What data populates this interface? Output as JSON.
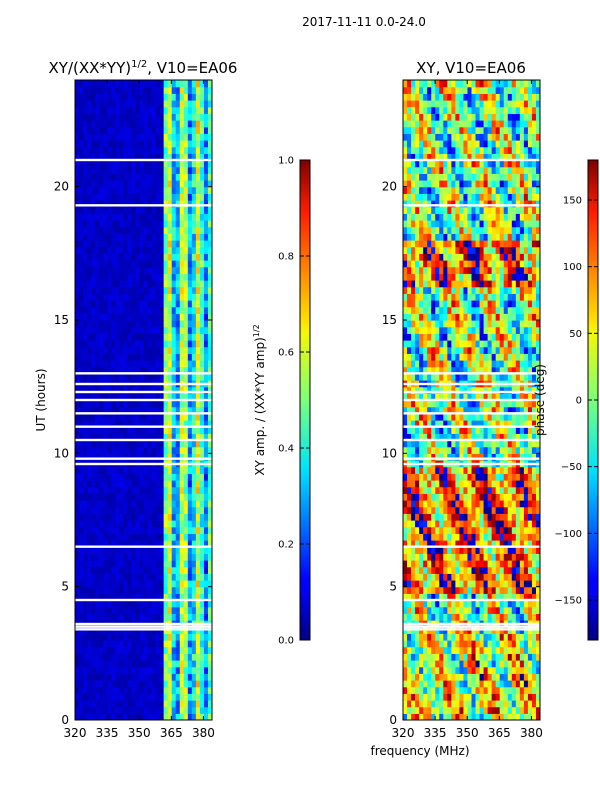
{
  "suptitle": "2017-11-11 0.0-24.0",
  "shared_xlabel": "frequency (MHz)",
  "colormap": "jet",
  "chart_data": [
    {
      "type": "heatmap",
      "title": "XY/(XX*YY)",
      "title_exponent": "1/2",
      "title_suffix": ", V10=EA06",
      "xlabel": "",
      "ylabel": "UT (hours)",
      "xlim": [
        320,
        384
      ],
      "ylim": [
        0,
        24
      ],
      "xticks": [
        "320",
        "335",
        "350",
        "365",
        "380"
      ],
      "yticks": [
        "0",
        "5",
        "10",
        "15",
        "20"
      ],
      "colorbar": {
        "label": "XY amp. / (XX*YY amp)",
        "label_exponent": "1/2",
        "range": [
          0.0,
          1.0
        ],
        "ticks": [
          "0.0",
          "0.2",
          "0.4",
          "0.6",
          "0.8",
          "1.0"
        ]
      },
      "value_notes": "≈0.05 (dark blue) for 320–360 MHz at all times; 0.3–0.7 patchy bands between 361 and 383 MHz",
      "flagged_hours": [
        3.4,
        3.5,
        3.6,
        4.5,
        6.5,
        9.6,
        9.8,
        10.5,
        11.0,
        11.5,
        12.0,
        12.3,
        12.6,
        13.0,
        19.3,
        21.0
      ]
    },
    {
      "type": "heatmap",
      "title": "XY, V10=EA06",
      "xlabel": "",
      "ylabel": "",
      "xlim": [
        320,
        384
      ],
      "ylim": [
        0,
        24
      ],
      "xticks": [
        "320",
        "335",
        "350",
        "365",
        "380"
      ],
      "yticks": [
        "0",
        "5",
        "10",
        "15",
        "20"
      ],
      "colorbar": {
        "label": "phase (deg)",
        "range": [
          -180,
          180
        ],
        "ticks": [
          "−150",
          "−100",
          "−50",
          "0",
          "50",
          "100",
          "150"
        ]
      },
      "value_notes": "phase spans −180 to 180 deg; mostly positive (orange/red) 4.5–9.5 h and 16–18 h, mixed elsewhere",
      "flagged_hours": [
        3.4,
        3.5,
        3.6,
        4.5,
        6.5,
        9.6,
        9.8,
        10.5,
        11.0,
        11.5,
        12.0,
        12.3,
        12.6,
        13.0,
        19.3,
        21.0
      ]
    }
  ]
}
